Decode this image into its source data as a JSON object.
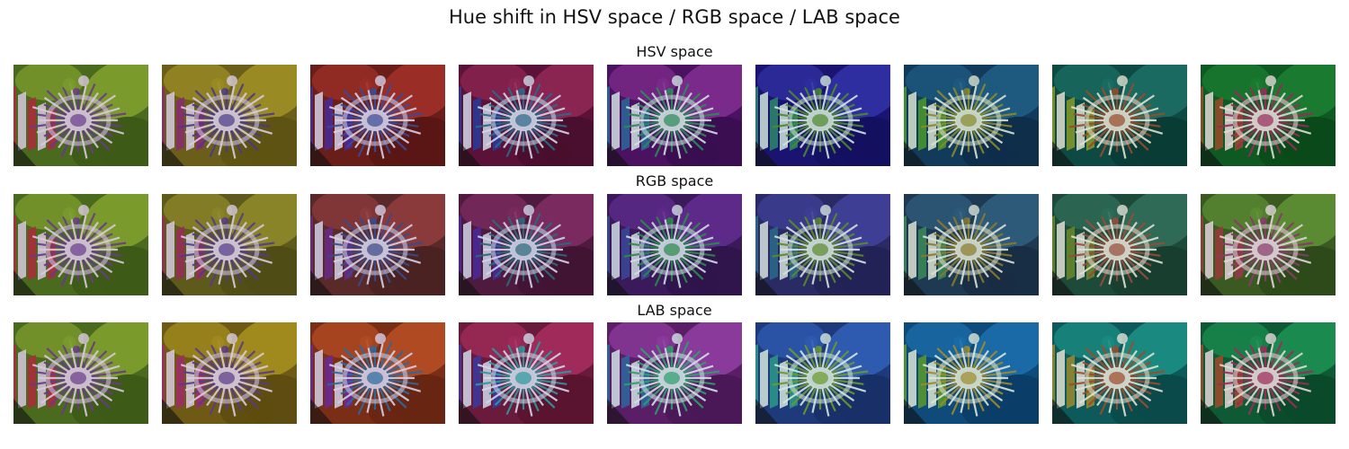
{
  "figure": {
    "title": "Hue shift in HSV space / RGB space / LAB space"
  },
  "rows": [
    {
      "title": "HSV space",
      "images": [
        {
          "bg": "#4a6a1e",
          "accent": "#7a9a2c",
          "leaf": "#3d5a16",
          "stripe": "#b02a3a",
          "petal": "#d8c8e0",
          "filament": "#6a3a8a"
        },
        {
          "bg": "#6b5e1a",
          "accent": "#9a8a24",
          "leaf": "#5e5312",
          "stripe": "#8a2a70",
          "petal": "#d6cce0",
          "filament": "#4a3a8a"
        },
        {
          "bg": "#6a1e1a",
          "accent": "#9a2e26",
          "leaf": "#5a1614",
          "stripe": "#4a2a9a",
          "petal": "#d4d0e8",
          "filament": "#3a4a9a"
        },
        {
          "bg": "#5a1238",
          "accent": "#8a2450",
          "leaf": "#4a0e2e",
          "stripe": "#2a3a9a",
          "petal": "#d0d8e8",
          "filament": "#2a6a8a"
        },
        {
          "bg": "#4a1260",
          "accent": "#7a2a8a",
          "leaf": "#3a0e50",
          "stripe": "#2a6a9a",
          "petal": "#d0e0e0",
          "filament": "#2a8a5a"
        },
        {
          "bg": "#1a1470",
          "accent": "#2e2ea0",
          "leaf": "#141060",
          "stripe": "#2a8a6a",
          "petal": "#d0e4d8",
          "filament": "#4a8a2a"
        },
        {
          "bg": "#123a5a",
          "accent": "#1e5a80",
          "leaf": "#0e2e4a",
          "stripe": "#4a9a2a",
          "petal": "#d8e4d0",
          "filament": "#8a8a2a"
        },
        {
          "bg": "#0e4a44",
          "accent": "#1a6a62",
          "leaf": "#0a3c36",
          "stripe": "#8a9a2a",
          "petal": "#e0e0d0",
          "filament": "#9a4a2a"
        },
        {
          "bg": "#0e5a22",
          "accent": "#1a7a30",
          "leaf": "#0a4a1a",
          "stripe": "#9a4a2a",
          "petal": "#e4d8d8",
          "filament": "#9a2a5a"
        }
      ]
    },
    {
      "title": "RGB space",
      "images": [
        {
          "bg": "#4a6a1e",
          "accent": "#7a9a2c",
          "leaf": "#3d5a16",
          "stripe": "#b02a3a",
          "petal": "#d8c8e0",
          "filament": "#6a3a8a"
        },
        {
          "bg": "#5e5a1c",
          "accent": "#8a8428",
          "leaf": "#504c16",
          "stripe": "#9a2a5a",
          "petal": "#d6cce0",
          "filament": "#553a8a"
        },
        {
          "bg": "#5a2a2a",
          "accent": "#8a3a3a",
          "leaf": "#4a2222",
          "stripe": "#6a2a8a",
          "petal": "#d4d0e6",
          "filament": "#3a4a8a"
        },
        {
          "bg": "#4e1a3e",
          "accent": "#7a2a5e",
          "leaf": "#421434",
          "stripe": "#4a2a9a",
          "petal": "#d0d4e8",
          "filament": "#2a6a7a"
        },
        {
          "bg": "#3a1a5a",
          "accent": "#5e2a8a",
          "leaf": "#30144c",
          "stripe": "#3a4a9a",
          "petal": "#d0dce4",
          "filament": "#2a8a4a"
        },
        {
          "bg": "#2a2a64",
          "accent": "#3e3e94",
          "leaf": "#222256",
          "stripe": "#2a6a8a",
          "petal": "#d4e2dc",
          "filament": "#5a8a2a"
        },
        {
          "bg": "#1e3a52",
          "accent": "#2e5a7a",
          "leaf": "#182e44",
          "stripe": "#3a8a5a",
          "petal": "#dae2d4",
          "filament": "#8a7a2a"
        },
        {
          "bg": "#1e4a3a",
          "accent": "#2e6a56",
          "leaf": "#183e30",
          "stripe": "#6a8a2a",
          "petal": "#e0e0d4",
          "filament": "#9a4a3a"
        },
        {
          "bg": "#3a5a22",
          "accent": "#5a8a32",
          "leaf": "#2e4a1a",
          "stripe": "#9a3a3a",
          "petal": "#e2d4dc",
          "filament": "#8a3a6a"
        }
      ]
    },
    {
      "title": "LAB space",
      "images": [
        {
          "bg": "#4a6a1e",
          "accent": "#7a9a2c",
          "leaf": "#3d5a16",
          "stripe": "#b02a3a",
          "petal": "#d8c8e0",
          "filament": "#6a3a8a"
        },
        {
          "bg": "#6e5a14",
          "accent": "#a08a1e",
          "leaf": "#5e4c10",
          "stripe": "#a02a6a",
          "petal": "#d8cce0",
          "filament": "#5a3a8a"
        },
        {
          "bg": "#7a2e16",
          "accent": "#b04a22",
          "leaf": "#682612",
          "stripe": "#6a2a9a",
          "petal": "#d4d0e8",
          "filament": "#2a6aa0"
        },
        {
          "bg": "#6a1a3a",
          "accent": "#a02a5a",
          "leaf": "#5a1430",
          "stripe": "#3a3aa0",
          "petal": "#d0d8ea",
          "filament": "#2a9aa0"
        },
        {
          "bg": "#5a1e66",
          "accent": "#8a3a9a",
          "leaf": "#4a1856",
          "stripe": "#2a6aa0",
          "petal": "#d0e2e4",
          "filament": "#2aa06a"
        },
        {
          "bg": "#1e3a7a",
          "accent": "#2e5ab0",
          "leaf": "#183068",
          "stripe": "#2a9a8a",
          "petal": "#d4e6dc",
          "filament": "#6a9a2a"
        },
        {
          "bg": "#0e4a7a",
          "accent": "#1a6aa8",
          "leaf": "#0a3e68",
          "stripe": "#5a9a2a",
          "petal": "#dce6d4",
          "filament": "#a08a2a"
        },
        {
          "bg": "#0e5a5a",
          "accent": "#1a8a80",
          "leaf": "#0a4a4a",
          "stripe": "#9a8a2a",
          "petal": "#e2e0d4",
          "filament": "#a04a2a"
        },
        {
          "bg": "#0e5a34",
          "accent": "#1a8a4e",
          "leaf": "#0a4a2a",
          "stripe": "#a04a2a",
          "petal": "#e6d6d8",
          "filament": "#a02a5a"
        }
      ]
    }
  ]
}
